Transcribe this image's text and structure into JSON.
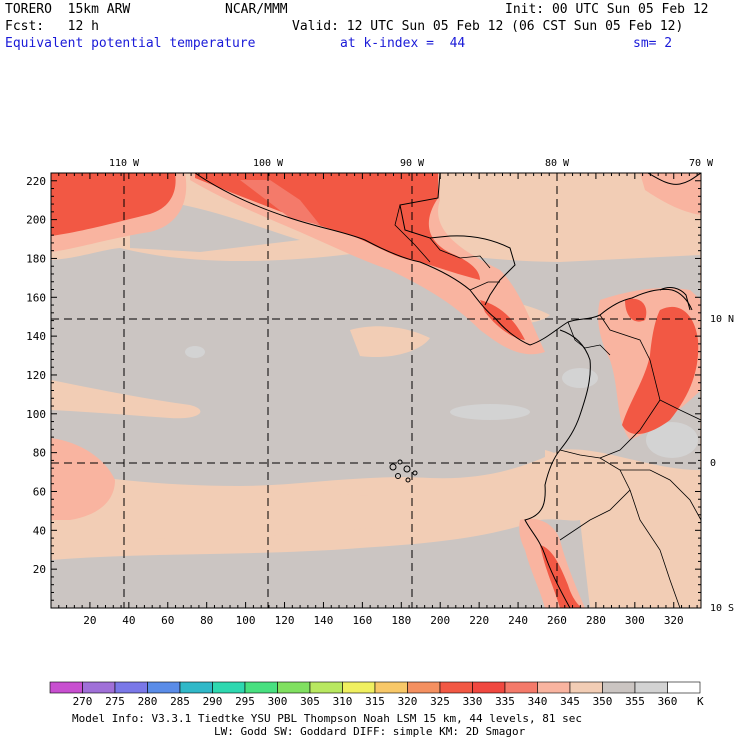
{
  "header": {
    "model": "TORERO  15km ARW",
    "center": "NCAR/MMM",
    "init": "Init: 00 UTC Sun 05 Feb 12",
    "fcst": "Fcst:   12 h",
    "valid": "Valid: 12 UTC Sun 05 Feb 12 (06 CST Sun 05 Feb 12)",
    "field": "Equivalent potential temperature",
    "level": "at k-index =  44",
    "smoothing": "sm= 2"
  },
  "map": {
    "x_ticks": [
      "20",
      "40",
      "60",
      "80",
      "100",
      "120",
      "140",
      "160",
      "180",
      "200",
      "220",
      "240",
      "260",
      "280",
      "300",
      "320"
    ],
    "y_ticks": [
      "20",
      "40",
      "60",
      "80",
      "100",
      "120",
      "140",
      "160",
      "180",
      "200",
      "220"
    ],
    "lon_labels": [
      "110 W",
      "100 W",
      "90 W",
      "80 W",
      "70 W"
    ],
    "lat_labels": [
      "10 N",
      "0",
      "10 S"
    ]
  },
  "legend": {
    "values": [
      "270",
      "275",
      "280",
      "285",
      "290",
      "295",
      "300",
      "305",
      "310",
      "315",
      "320",
      "325",
      "330",
      "335",
      "340",
      "345",
      "350",
      "355",
      "360"
    ],
    "unit": "K",
    "colors": [
      "#c84fd0",
      "#a070d8",
      "#7a78e8",
      "#5a8ce8",
      "#30b8c8",
      "#2ed8b0",
      "#48e080",
      "#80e060",
      "#b8e860",
      "#f0f060",
      "#f8c868",
      "#f49060",
      "#f25844",
      "#f04840",
      "#f47a6a",
      "#f9b4a0",
      "#f2cdb5",
      "#cbc5c2",
      "#d3d3d3"
    ]
  },
  "footer": {
    "line1": "Model Info: V3.3.1    Tiedtke YSU PBL  Thompson    Noah LSM  15 km,   44 levels,   81 sec",
    "line2": "LW: Godd SW: Goddard DIFF: simple KM: 2D Smagor"
  }
}
